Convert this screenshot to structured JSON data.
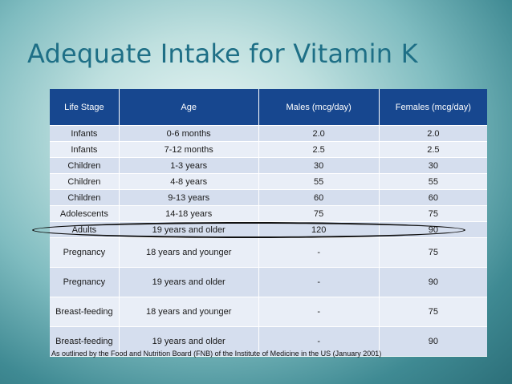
{
  "title": "Adequate Intake for Vitamin K",
  "table": {
    "headers": [
      "Life Stage",
      "Age",
      "Males (mcg/day)",
      "Females (mcg/day)"
    ],
    "rows": [
      [
        "Infants",
        "0-6 months",
        "2.0",
        "2.0"
      ],
      [
        "Infants",
        "7-12 months",
        "2.5",
        "2.5"
      ],
      [
        "Children",
        "1-3 years",
        "30",
        "30"
      ],
      [
        "Children",
        "4-8 years",
        "55",
        "55"
      ],
      [
        "Children",
        "9-13 years",
        "60",
        "60"
      ],
      [
        "Adolescents",
        "14-18 years",
        "75",
        "75"
      ],
      [
        "Adults",
        "19 years and older",
        "120",
        "90"
      ],
      [
        "Pregnancy",
        "18 years and younger",
        "-",
        "75"
      ],
      [
        "Pregnancy",
        "19 years and older",
        "-",
        "90"
      ],
      [
        "Breast-feeding",
        "18 years and younger",
        "-",
        "75"
      ],
      [
        "Breast-feeding",
        "19 years and older",
        "-",
        "90"
      ]
    ]
  },
  "footnote": "As outlined by the Food and Nutrition Board (FNB) of the Institute of Medicine in the US (January 2001)",
  "colors": {
    "header_bg": "#17478f",
    "title": "#1e6f86",
    "row_odd": "#d5deee",
    "row_even": "#e9eef7"
  }
}
